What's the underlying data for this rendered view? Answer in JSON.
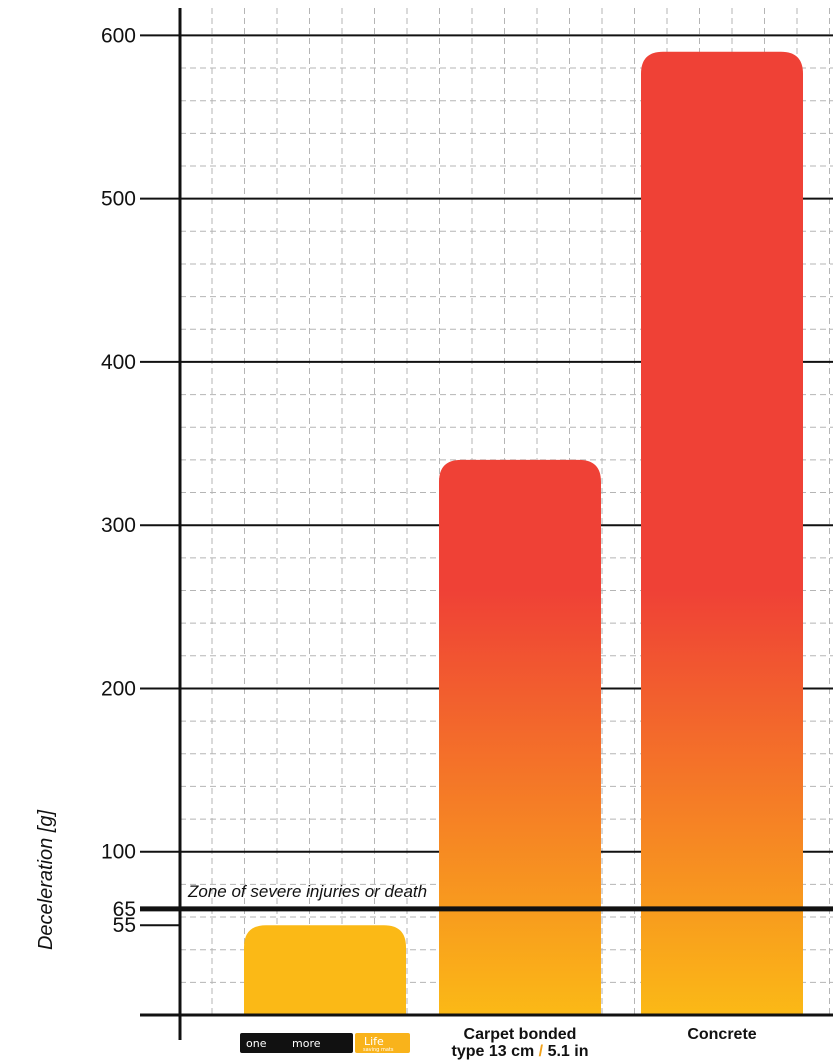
{
  "chart_data": {
    "type": "bar",
    "title": "",
    "ylabel": "Deceleration [g]",
    "xlabel": "",
    "ylim": [
      0,
      620
    ],
    "yticks": [
      600,
      500,
      400,
      300,
      200,
      100,
      65,
      55
    ],
    "categories": [
      {
        "label": "",
        "logo": {
          "word1": "one",
          "word2": "more",
          "word3": "Life",
          "tagline": "saving mats"
        }
      },
      {
        "label_line1": "Carpet bonded",
        "label_line2_a": "type 13 cm",
        "label_line2_sep": "/",
        "label_line2_b": "5.1 in"
      },
      {
        "label": "Concrete"
      }
    ],
    "values": [
      55,
      340,
      590
    ],
    "threshold": {
      "value": 65,
      "label": "Zone of severe injuries or death"
    },
    "grid": true,
    "colors": {
      "bar_top": "#ef4136",
      "bar_bottom": "#fbb916",
      "mat_bar": "#fbb916",
      "accent": "#f2a21b"
    }
  }
}
